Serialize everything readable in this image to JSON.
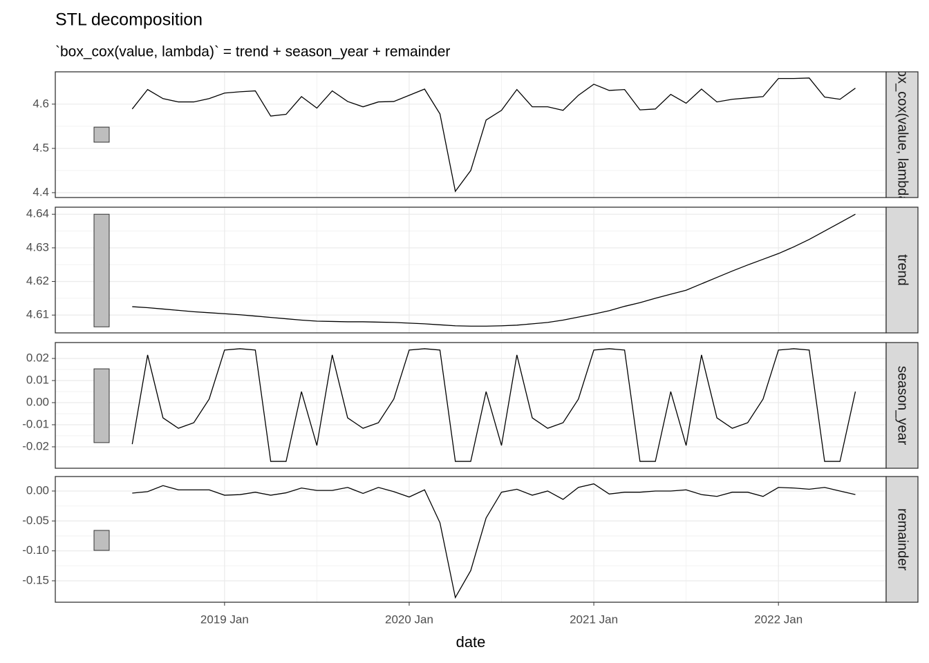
{
  "chart_data": {
    "type": "line",
    "title": "STL decomposition",
    "subtitle": "`box_cox(value, lambda)` = trend + season_year + remainder",
    "x_label": "date",
    "x": [
      "2018 Jul",
      "2018 Aug",
      "2018 Sep",
      "2018 Oct",
      "2018 Nov",
      "2018 Dec",
      "2019 Jan",
      "2019 Feb",
      "2019 Mar",
      "2019 Apr",
      "2019 May",
      "2019 Jun",
      "2019 Jul",
      "2019 Aug",
      "2019 Sep",
      "2019 Oct",
      "2019 Nov",
      "2019 Dec",
      "2020 Jan",
      "2020 Feb",
      "2020 Mar",
      "2020 Apr",
      "2020 May",
      "2020 Jun",
      "2020 Jul",
      "2020 Aug",
      "2020 Sep",
      "2020 Oct",
      "2020 Nov",
      "2020 Dec",
      "2021 Jan",
      "2021 Feb",
      "2021 Mar",
      "2021 Apr",
      "2021 May",
      "2021 Jun",
      "2021 Jul",
      "2021 Aug",
      "2021 Sep",
      "2021 Oct",
      "2021 Nov",
      "2021 Dec",
      "2022 Jan",
      "2022 Feb",
      "2022 Mar",
      "2022 Apr",
      "2022 May",
      "2022 Jun"
    ],
    "xlim": [
      "2018 Feb",
      "2022 Aug"
    ],
    "xticks": [
      "2019 Jan",
      "2020 Jan",
      "2021 Jan",
      "2022 Jan"
    ],
    "grid": true,
    "color": "#000000",
    "range_bar_color": "#bebebe",
    "panels": [
      {
        "name": "`box_cox(value, lambda)`",
        "values": [
          4.589,
          4.633,
          4.6125,
          4.605,
          4.605,
          4.6125,
          4.625,
          4.628,
          4.63,
          4.573,
          4.577,
          4.617,
          4.591,
          4.63,
          4.606,
          4.594,
          4.605,
          4.606,
          4.62,
          4.634,
          4.578,
          4.403,
          4.45,
          4.564,
          4.586,
          4.633,
          4.594,
          4.594,
          4.586,
          4.62,
          4.645,
          4.631,
          4.633,
          4.587,
          4.589,
          4.622,
          4.602,
          4.634,
          4.605,
          4.611,
          4.614,
          4.617,
          4.658,
          4.658,
          4.659,
          4.616,
          4.611,
          4.636
        ],
        "ylim": [
          4.389,
          4.673
        ],
        "yticks": [
          4.4,
          4.5,
          4.6
        ],
        "range_bar": [
          4.514,
          4.548
        ]
      },
      {
        "name": "trend",
        "values": [
          4.6125,
          4.6122,
          4.6118,
          4.6114,
          4.611,
          4.6107,
          4.6104,
          4.6101,
          4.6097,
          4.6093,
          4.6089,
          4.6085,
          4.6082,
          4.6081,
          4.608,
          4.608,
          4.6079,
          4.6078,
          4.6076,
          4.6074,
          4.6071,
          4.6068,
          4.6067,
          4.6067,
          4.6068,
          4.607,
          4.6074,
          4.6078,
          4.6085,
          4.6094,
          4.6103,
          4.6113,
          4.6126,
          4.6137,
          4.615,
          4.6162,
          4.6174,
          4.6193,
          4.6212,
          4.6231,
          4.6249,
          4.6266,
          4.6283,
          4.6303,
          4.6325,
          4.635,
          4.6375,
          4.64
        ],
        "ylim": [
          4.6047,
          4.6421
        ],
        "yticks": [
          4.61,
          4.62,
          4.63,
          4.64
        ],
        "range_bar": [
          4.6065,
          4.64
        ]
      },
      {
        "name": "season_year",
        "values": [
          -0.0188,
          0.0216,
          -0.0069,
          -0.0116,
          -0.0091,
          0.0016,
          0.0238,
          0.0244,
          0.0238,
          -0.0266,
          -0.0266,
          0.005,
          -0.0194,
          0.0216,
          -0.0069,
          -0.0116,
          -0.0091,
          0.0016,
          0.0238,
          0.0244,
          0.0238,
          -0.0266,
          -0.0266,
          0.005,
          -0.0194,
          0.0216,
          -0.0069,
          -0.0116,
          -0.0091,
          0.0016,
          0.0238,
          0.0244,
          0.0238,
          -0.0266,
          -0.0266,
          0.005,
          -0.0194,
          0.0216,
          -0.0069,
          -0.0116,
          -0.0091,
          0.0016,
          0.0238,
          0.0244,
          0.0238,
          -0.0266,
          -0.0266,
          0.005
        ],
        "ylim": [
          -0.0297,
          0.0272
        ],
        "yticks": [
          {
            "value": -0.02,
            "label": "-0.02"
          },
          -0.01,
          {
            "value": 0,
            "label": "0.00"
          },
          0.01,
          0.02
        ],
        "range_bar": [
          -0.0181,
          0.0153
        ]
      },
      {
        "name": "remainder",
        "values": [
          -0.0035,
          -0.001,
          0.009,
          0.002,
          0.002,
          0.002,
          -0.007,
          -0.006,
          -0.002,
          -0.007,
          -0.003,
          0.005,
          0.001,
          0.001,
          0.006,
          -0.004,
          0.006,
          -0.001,
          -0.01,
          0.002,
          -0.053,
          -0.178,
          -0.133,
          -0.045,
          -0.002,
          0.003,
          -0.007,
          0.0,
          -0.014,
          0.006,
          0.012,
          -0.005,
          -0.002,
          -0.002,
          0.0,
          0.0,
          0.002,
          -0.006,
          -0.009,
          -0.002,
          -0.002,
          -0.009,
          0.006,
          0.005,
          0.003,
          0.006,
          0.0,
          -0.006
        ],
        "ylim": [
          -0.1858,
          0.0242
        ],
        "yticks": [
          -0.15,
          {
            "value": -0.1,
            "label": "-0.10"
          },
          -0.05,
          {
            "value": 0,
            "label": "0.00"
          }
        ],
        "range_bar": [
          -0.0992,
          -0.0658
        ]
      }
    ]
  }
}
